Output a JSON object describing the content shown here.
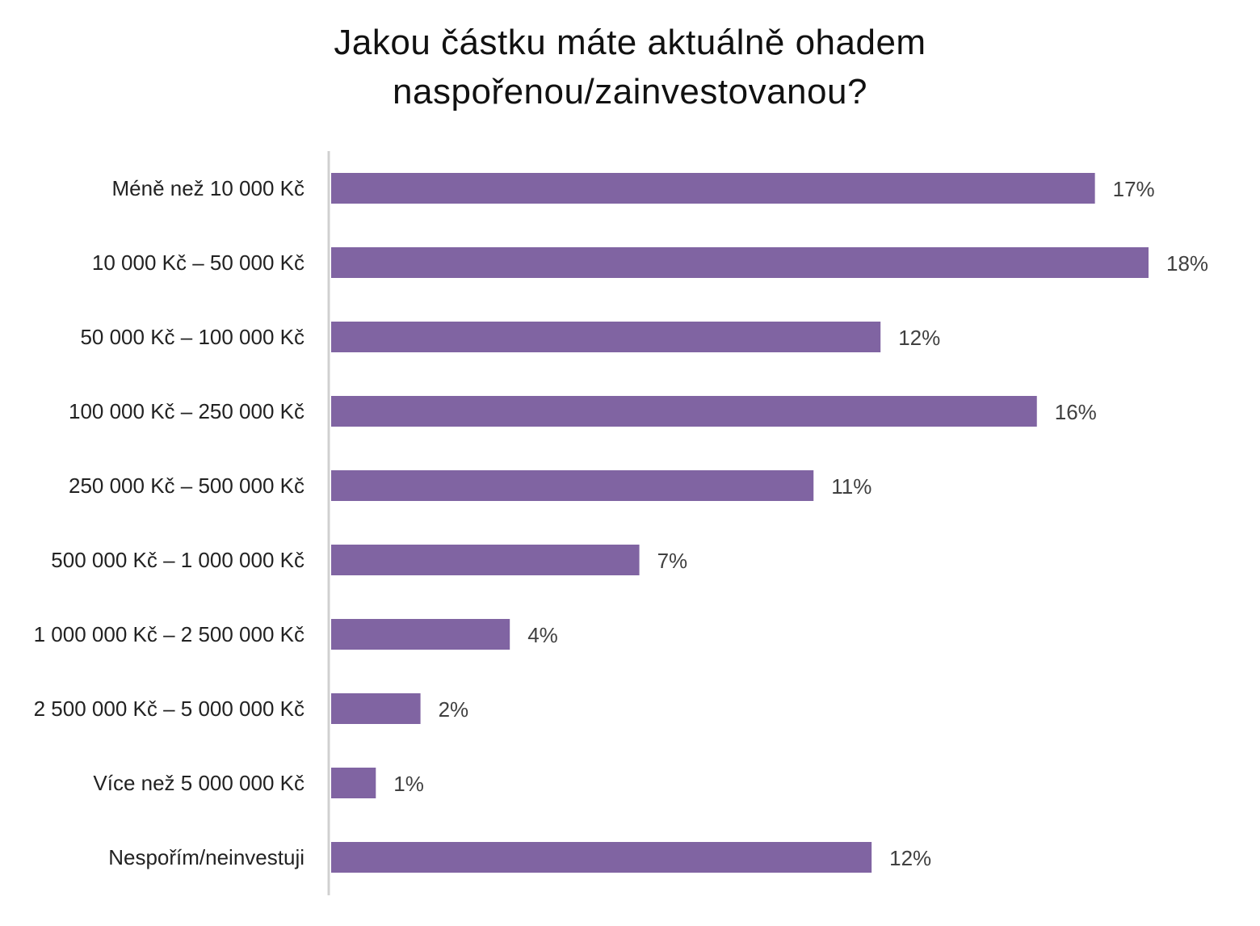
{
  "chart_data": {
    "type": "hbar",
    "title": "Jakou částku máte aktuálně ohadem naspořenou/zainvestovanou?",
    "categories": [
      "Méně než 10 000 Kč",
      "10 000 Kč – 50 000 Kč",
      "50 000 Kč – 100 000 Kč",
      "100 000 Kč – 250 000 Kč",
      "250 000 Kč – 500 000 Kč",
      "500 000 Kč – 1 000 000 Kč",
      "1 000 000 Kč – 2 500 000 Kč",
      "2 500 000 Kč – 5 000 000 Kč",
      "Více než 5 000 000 Kč",
      "Nespořím/neinvestuji"
    ],
    "values": [
      17.1,
      18.3,
      12.3,
      15.8,
      10.8,
      6.9,
      4.0,
      2.0,
      1.0,
      12.1
    ],
    "value_labels": [
      "17%",
      "18%",
      "12%",
      "16%",
      "11%",
      "7%",
      "4%",
      "2%",
      "1%",
      "12%"
    ],
    "color": "#8064a2",
    "xlim": [
      0,
      20
    ]
  }
}
